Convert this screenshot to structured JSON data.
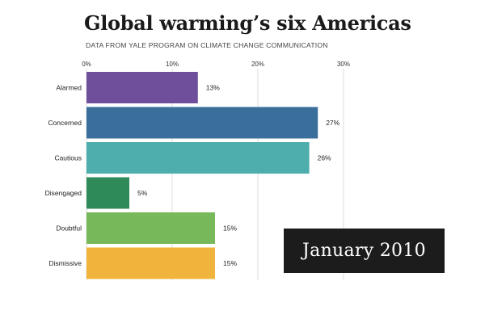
{
  "chart_data": {
    "type": "bar",
    "orientation": "horizontal",
    "title": "Global warming’s six Americas",
    "subtitle": "DATA FROM YALE PROGRAM ON CLIMATE CHANGE COMMUNICATION",
    "categories": [
      "Alarmed",
      "Concerned",
      "Cautious",
      "Disengaged",
      "Doubtful",
      "Dismissive"
    ],
    "values": [
      13,
      27,
      26,
      5,
      15,
      15
    ],
    "value_labels": [
      "13%",
      "27%",
      "26%",
      "5%",
      "15%",
      "15%"
    ],
    "colors": [
      "#6f4f9c",
      "#3a6e9b",
      "#4eadad",
      "#2f8a5a",
      "#77b85a",
      "#f0b43c"
    ],
    "xlim": [
      0,
      30
    ],
    "xticks": [
      0,
      10,
      20,
      30
    ],
    "xtick_labels": [
      "0%",
      "10%",
      "20%",
      "30%"
    ],
    "grid": true,
    "xlabel": "",
    "ylabel": ""
  },
  "badge": {
    "text": "January 2010"
  }
}
